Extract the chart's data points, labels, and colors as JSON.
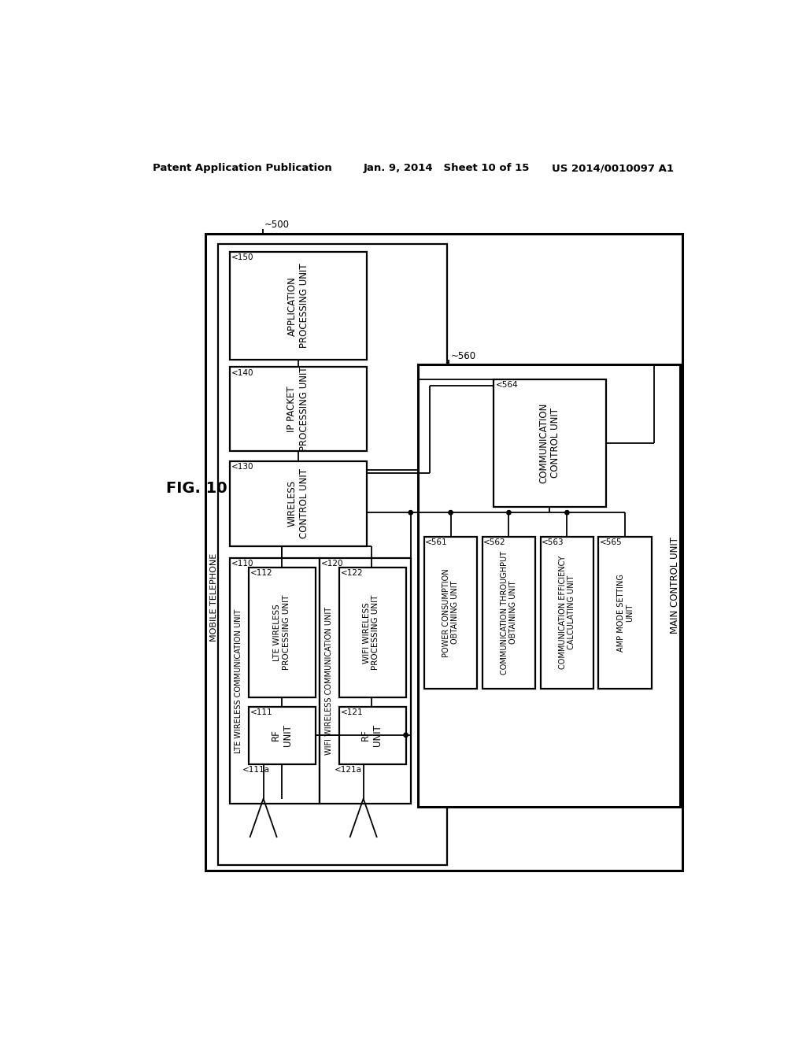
{
  "bg_color": "#ffffff",
  "header_left": "Patent Application Publication",
  "header_mid": "Jan. 9, 2014   Sheet 10 of 15",
  "header_right": "US 2014/0010097 A1",
  "fig_label": "FIG. 10"
}
